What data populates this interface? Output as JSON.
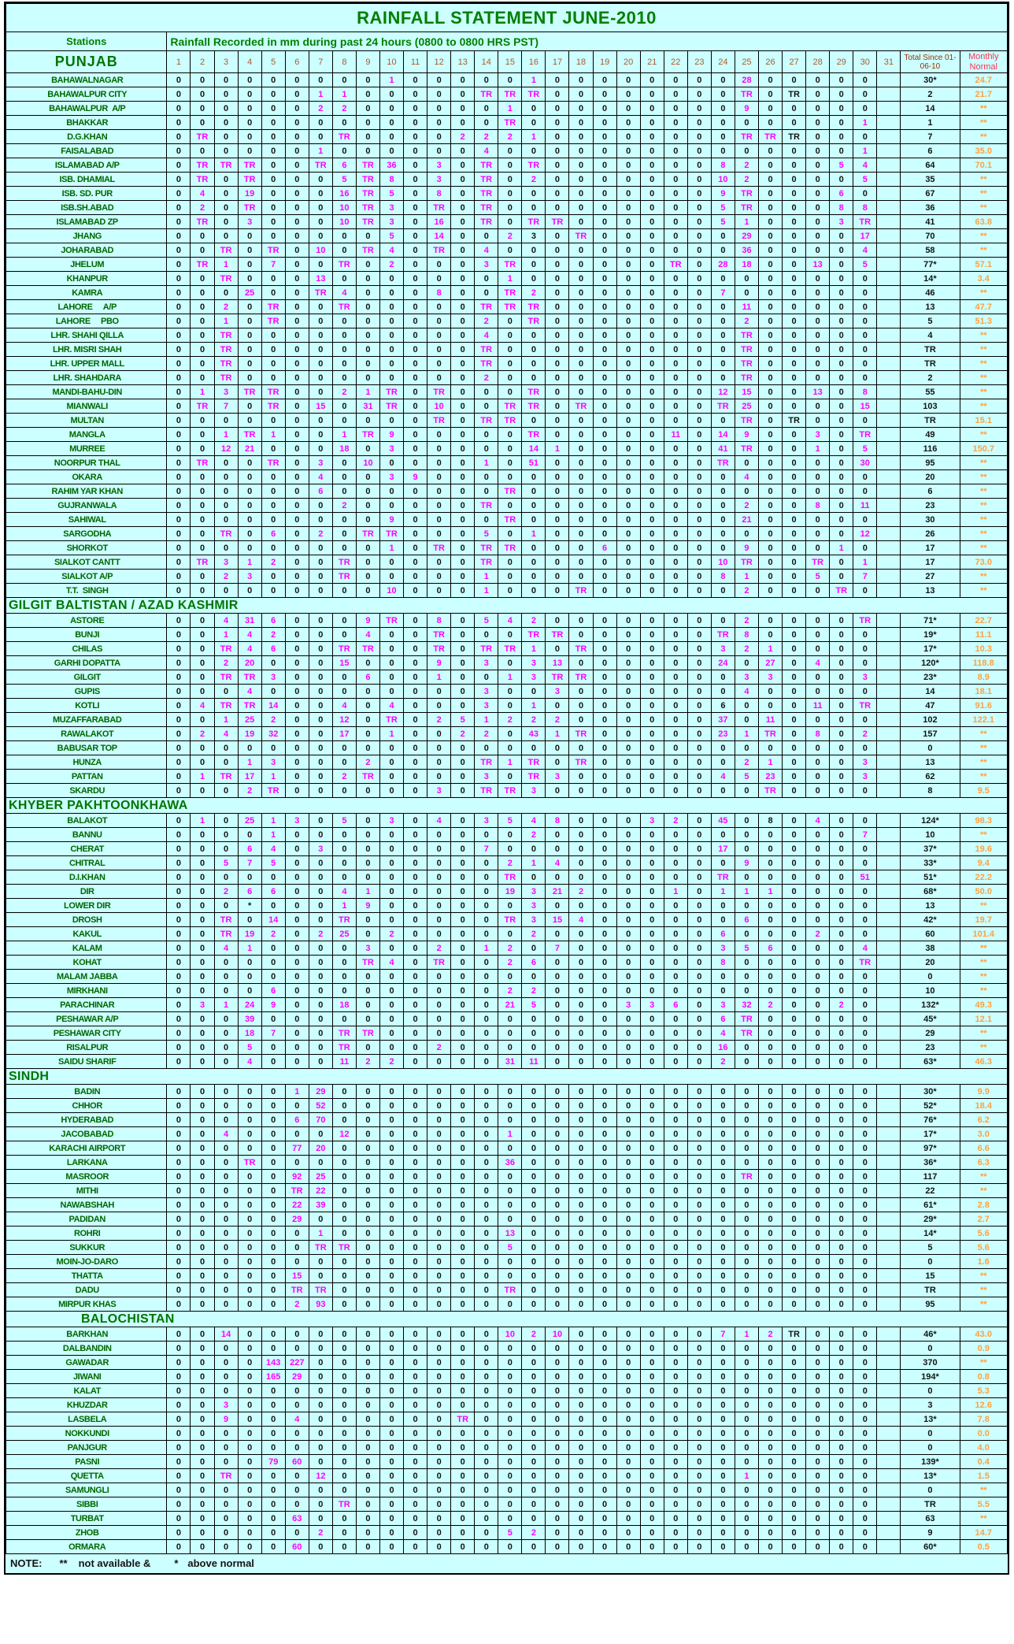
{
  "title": "RAINFALL STATEMENT JUNE-2010",
  "header": {
    "stations_label": "Stations",
    "subtitle": "Rainfall Recorded in mm during past 24 hours (0800 to 0800 HRS PST)",
    "day_numbers": [
      "1",
      "2",
      "3",
      "4",
      "5",
      "6",
      "7",
      "8",
      "9",
      "10",
      "11",
      "12",
      "13",
      "14",
      "15",
      "16",
      "17",
      "18",
      "19",
      "20",
      "21",
      "22",
      "23",
      "24",
      "25",
      "26",
      "27",
      "28",
      "29",
      "30",
      "31"
    ],
    "total_label": "Total Since 01-06-10",
    "normal_label": "Monthly Normal"
  },
  "note": {
    "label": "NOTE:",
    "na_symbol": "**",
    "na_text": "not available &",
    "an_symbol": "*",
    "an_text": "above normal"
  },
  "colors": {
    "background": "#CCFFFF",
    "title_green": "#008000",
    "station_green": "#006600",
    "value_magenta": "#FF00FF",
    "zero_black": "#141414",
    "day_header_brown": "#B05A28",
    "total_header_brown": "#993300",
    "normal_header_red": "#FF3355",
    "normal_value_orange": "#FFA040"
  },
  "sections": [
    {
      "name": "PUNJAB",
      "rows": [
        [
          "BAHAWALNAGAR",
          "0 0 0 0 0 0 0 0 0 1 0 0 0 0 0 1 0 0 0 0 0 0 0 0 28 0 0 0 0 0",
          "30*",
          "24.7"
        ],
        [
          "BAHAWALPUR CITY",
          "0 0 0 0 0 0 1 1 0 0 0 0 0 TR TR TR 0 0 0 0 0 0 0 0 TR 0 !TR 0 0 0",
          "2",
          "21.7"
        ],
        [
          "BAHAWALPUR  A/P",
          "0 0 0 0 0 0 2 2 0 0 0 0 0 0 1 0 0 0 0 0 0 0 0 0 9 0 0 0 0 0",
          "14",
          "**"
        ],
        [
          "BHAKKAR",
          "0 0 0 0 0 0 0 0 0 0 0 0 0 0 TR 0 0 0 0 0 0 0 0 0 0 0 0 0 0 1",
          "1",
          "**"
        ],
        [
          "D.G.KHAN",
          "0 TR 0 0 0 0 0 TR 0 0 0 0 2 2 2 1 0 0 0 0 0 0 0 0 TR TR !TR 0 0 0",
          "7",
          "**"
        ],
        [
          "FAISALABAD",
          "0 0 0 0 0 0 1 0 0 0 0 0 0 4 0 0 0 0 0 0 0 0 0 0 0 0 0 0 0 1",
          "6",
          "35.0"
        ],
        [
          "ISLAMABAD A/P",
          "0 TR TR TR 0 0 TR 6 TR 36 0 3 0 TR 0 TR 0 0 0 0 0 0 0 8 2 0 0 0 5 4",
          "64",
          "70.1"
        ],
        [
          "ISB. DHAMIAL",
          "0 TR 0 TR 0 0 0 5 TR 8 0 3 0 TR 0 2 0 0 0 0 0 0 0 10 2 0 0 0 0 5",
          "35",
          "**"
        ],
        [
          "ISB. SD. PUR",
          "0 4 0 19 0 0 0 16 TR 5 0 8 0 TR 0 0 0 0 0 0 0 0 0 9 TR 0 0 0 6 0",
          "67",
          "**"
        ],
        [
          "ISB.SH.ABAD",
          "0 2 0 TR 0 0 0 10 TR 3 0 TR 0 TR 0 0 0 0 0 0 0 0 0 5 TR 0 0 0 8 8",
          "36",
          "**"
        ],
        [
          "ISLAMABAD ZP",
          "0 TR 0 3 0 0 0 10 TR 3 0 16 0 TR 0 TR TR 0 0 0 0 0 0 5 1 0 0 0 3 TR",
          "41",
          "63.8"
        ],
        [
          "JHANG",
          "0 0 0 0 0 0 0 0 0 5 0 14 0 0 2 !3 0 TR 0 0 0 0 0 0 29 0 0 0 0 17",
          "70",
          "**"
        ],
        [
          "JOHARABAD",
          "0 0 TR 0 TR 0 10 0 TR 4 0 TR 0 4 0 0 0 0 0 0 0 0 0 0 36 0 0 0 0 4",
          "58",
          "**"
        ],
        [
          "JHELUM",
          "0 TR 1 0 7 0 0 TR 0 2 0 0 0 3 TR 0 0 0 0 0 0 TR 0 28 18 0 0 13 0 5",
          "77*",
          "57.1"
        ],
        [
          "KHANPUR",
          "0 0 TR 0 0 0 13 0 0 0 0 0 0 0 1 0 0 0 0 0 0 0 0 0 0 0 0 0 0 0",
          "14*",
          "3.4"
        ],
        [
          "KAMRA",
          "0 0 0 25 0 0 TR 4 0 0 0 8 0 0 TR 2 0 0 0 0 0 0 0 7 0 0 0 0 0 0",
          "46",
          "**"
        ],
        [
          "LAHORE     A/P",
          "0 0 2 0 TR 0 0 TR 0 0 0 0 0 TR TR TR 0 0 0 0 0 0 0 0 11 0 0 0 0 0",
          "13",
          "47.7"
        ],
        [
          "LAHORE     PBO",
          "0 0 1 0 TR 0 0 0 0 0 0 0 0 2 0 TR 0 0 0 0 0 0 0 0 2 0 0 0 0 0",
          "5",
          "51.3"
        ],
        [
          "LHR. SHAHI QILLA",
          "0 0 TR 0 0 0 0 0 0 0 0 0 0 4 0 0 0 0 0 0 0 0 0 0 TR 0 0 0 0 0",
          "4",
          "**"
        ],
        [
          "LHR. MISRI SHAH",
          "0 0 TR 0 0 0 0 0 0 0 0 0 0 TR 0 0 0 0 0 0 0 0 0 0 TR 0 0 0 0 0",
          "TR",
          "**"
        ],
        [
          "LHR. UPPER MALL",
          "0 0 TR 0 0 0 0 0 0 0 0 0 0 TR 0 0 0 0 0 0 0 0 0 0 TR 0 0 0 0 0",
          "TR",
          "**"
        ],
        [
          "LHR. SHAHDARA",
          "0 0 TR 0 0 0 0 0 0 0 0 0 0 2 0 0 0 0 0 0 0 0 0 0 TR 0 0 0 0 0",
          "2",
          "**"
        ],
        [
          "MANDI-BAHU-DIN",
          "0 1 3 TR TR 0 0 2 1 TR 0 TR 0 0 0 TR 0 0 0 0 0 0 0 12 15 0 0 13 0 8",
          "55",
          "**"
        ],
        [
          "MIANWALI",
          "0 TR 7 0 TR 0 15 0 31 TR 0 10 0 0 TR TR 0 TR 0 0 0 0 0 TR 25 0 0 0 0 15",
          "103",
          "**"
        ],
        [
          "MULTAN",
          "0 0 0 0 0 0 0 0 0 0 0 TR 0 TR TR 0 0 0 0 0 0 0 0 0 TR 0 !TR 0 0 0",
          "TR",
          "15.1"
        ],
        [
          "MANGLA",
          "0 0 1 TR 1 0 0 1 TR 9 0 0 0 0 0 TR 0 0 0 0 0 11 0 14 9 0 0 3 0 TR",
          "49",
          "**"
        ],
        [
          "MURREE",
          "0 0 12 21 0 0 0 18 0 3 0 0 0 0 0 14 1 0 0 0 0 0 0 41 TR 0 0 1 0 5",
          "116",
          "150.7"
        ],
        [
          "NOORPUR THAL",
          "0 TR 0 0 TR 0 3 0 10 0 0 0 0 1 0 51 0 0 0 0 0 0 0 TR 0 0 0 0 0 30",
          "95",
          "**"
        ],
        [
          "OKARA",
          "0 0 0 0 0 0 4 0 0 3 9 0 0 0 0 0 0 0 0 0 0 0 0 0 4 0 0 0 0 0",
          "20",
          "**"
        ],
        [
          "RAHIM YAR KHAN",
          "0 0 0 0 0 0 6 0 0 0 0 0 0 0 TR 0 0 0 0 0 0 0 0 0 0 0 0 0 0 0",
          "6",
          "**"
        ],
        [
          "GUJRANWALA",
          "0 0 0 0 0 0 0 2 0 0 0 0 0 TR 0 0 0 0 0 0 0 0 0 0 2 0 0 8 0 11",
          "23",
          "**"
        ],
        [
          "SAHIWAL",
          "0 0 0 0 0 0 0 0 0 9 0 0 0 0 TR 0 0 0 0 0 0 0 0 0 21 0 0 0 0 0",
          "30",
          "**"
        ],
        [
          "SARGODHA",
          "0 0 TR 0 6 0 2 0 TR TR 0 0 0 5 0 1 0 0 0 0 0 0 0 0 0 0 0 0 0 12",
          "26",
          "**"
        ],
        [
          "SHORKOT",
          "0 0 0 0 0 0 0 0 0 1 0 TR 0 TR TR 0 0 0 6 0 0 0 0 0 9 0 0 0 1 0",
          "17",
          "**"
        ],
        [
          "SIALKOT CANTT",
          "0 TR 3 1 2 0 0 TR 0 0 0 0 0 TR 0 0 0 0 0 0 0 0 0 10 TR 0 0 TR 0 1",
          "17",
          "73.0"
        ],
        [
          "SIALKOT A/P",
          "0 0 2 3 0 0 0 TR 0 0 0 0 0 1 0 0 0 0 0 0 0 0 0 8 1 0 0 5 0 7",
          "27",
          "**"
        ],
        [
          "T.T.  SINGH",
          "0 0 0 0 0 0 0 0 0 10 0 0 0 1 0 0 0 TR 0 0 0 0 0 0 2 0 0 0 TR 0",
          "13",
          "**"
        ]
      ]
    },
    {
      "name": "GILGIT BALTISTAN / AZAD KASHMIR",
      "rows": [
        [
          "ASTORE",
          "0 0 4 31 6 0 0 0 9 TR 0 8 0 5 4 2 0 0 0 0 0 0 0 0 2 0 0 0 0 TR",
          "71*",
          "22.7"
        ],
        [
          "BUNJI",
          "0 0 1 4 2 0 0 0 4 0 0 TR 0 0 0 TR TR 0 0 0 0 0 0 TR 8 0 0 0 0 0",
          "19*",
          "11.1"
        ],
        [
          "CHILAS",
          "0 0 TR 4 6 0 0 TR TR 0 0 TR 0 TR TR 1 0 TR 0 0 0 0 0 3 2 1 0 0 0 0",
          "17*",
          "10.3"
        ],
        [
          "GARHI DOPATTA",
          "0 0 2 20 0 0 0 15 0 0 0 9 0 3 0 3 13 0 0 0 0 0 0 24 0 27 0 4 0 0",
          "120*",
          "118.8"
        ],
        [
          "GILGIT",
          "0 0 TR TR 3 0 0 0 6 0 0 1 0 0 1 3 TR TR 0 0 0 0 0 0 3 3 0 0 0 3",
          "23*",
          "8.9"
        ],
        [
          "GUPIS",
          "0 0 0 4 0 0 0 0 0 0 0 0 0 3 0 0 3 0 0 0 0 0 0 0 4 0 0 0 0 0",
          "14",
          "18.1"
        ],
        [
          "KOTLI",
          "0 4 TR TR 14 0 0 4 0 4 0 0 0 3 0 1 0 0 0 0 0 0 0 !6 0 0 0 11 0 TR",
          "47",
          "91.6"
        ],
        [
          "MUZAFFARABAD",
          "0 0 1 25 2 0 0 12 0 TR 0 2 5 1 2 2 2 0 0 0 0 0 0 37 0 11 0 0 0 0",
          "102",
          "122.1"
        ],
        [
          "RAWALAKOT",
          "0 2 4 19 32 0 0 17 0 1 0 0 2 2 0 43 1 TR 0 0 0 0 0 23 1 TR 0 8 0 2",
          "157",
          "**"
        ],
        [
          "BABUSAR TOP",
          "0 0 0 0 0 0 0 0 0 0 0 0 0 0 0 0 0 0 0 0 0 0 0 0 0 0 0 0 0 0",
          "0",
          "**"
        ],
        [
          "HUNZA",
          "0 0 0 1 3 0 0 0 2 0 0 0 0 TR 1 TR 0 TR 0 0 0 0 0 0 2 1 0 0 0 3",
          "13",
          "**"
        ],
        [
          "PATTAN",
          "0 1 TR 17 1 0 0 2 TR 0 0 0 0 3 0 TR 3 0 0 0 0 0 0 4 5 23 0 0 0 3",
          "62",
          "**"
        ],
        [
          "SKARDU",
          "0 0 0 2 TR 0 0 0 0 0 0 3 0 TR TR 3 0 0 0 0 0 0 0 0 0 TR 0 0 0 0",
          "8",
          "9.5"
        ]
      ]
    },
    {
      "name": "KHYBER PAKHTOONKHAWA",
      "rows": [
        [
          "BALAKOT",
          "0 1 0 25 1 3 0 5 0 3 0 4 0 3 5 4 8 0 0 0 3 2 0 45 0 !8 0 4 0 0",
          "124*",
          "98.3"
        ],
        [
          "BANNU",
          "0 0 0 0 1 0 0 0 0 0 0 0 0 0 0 2 0 0 0 0 0 0 0 0 0 0 0 0 0 7",
          "10",
          "**"
        ],
        [
          "CHERAT",
          "0 0 0 6 4 0 3 0 0 0 0 0 0 7 0 0 0 0 0 0 0 0 0 17 0 0 0 0 0 0",
          "37*",
          "19.6"
        ],
        [
          "CHITRAL",
          "0 0 5 7 5 0 0 0 0 0 0 0 0 0 2 1 4 0 0 0 0 0 0 0 9 0 0 0 0 0",
          "33*",
          "9.4"
        ],
        [
          "D.I.KHAN",
          "0 0 0 0 0 0 0 0 0 0 0 0 0 0 TR 0 0 0 0 0 0 0 0 TR 0 0 0 0 0 51",
          "51*",
          "22.2"
        ],
        [
          "DIR",
          "0 0 2 6 6 0 0 4 1 0 0 0 0 0 19 3 21 2 0 0 0 1 0 1 1 1 0 0 0 0",
          "68*",
          "50.0"
        ],
        [
          "LOWER DIR",
          "0 0 0 * 0 0 0 1 9 0 0 0 0 0 0 3 0 0 0 0 0 0 0 0 0 0 0 0 0 0",
          "13",
          "**"
        ],
        [
          "DROSH",
          "0 0 TR 0 14 0 0 TR 0 0 0 0 0 0 TR 3 15 4 0 0 0 0 0 0 6 0 0 0 0 0",
          "42*",
          "19.7"
        ],
        [
          "KAKUL",
          "0 0 TR 19 2 0 2 25 0 2 0 0 0 0 0 2 0 0 0 0 0 0 0 6 0 0 0 2 0 0",
          "60",
          "101.4"
        ],
        [
          "KALAM",
          "0 0 4 1 0 0 0 0 3 0 0 2 0 1 2 0 7 0 0 0 0 0 0 3 5 6 0 0 0 4",
          "38",
          "**"
        ],
        [
          "KOHAT",
          "0 0 0 0 0 0 0 0 TR 4 0 TR 0 0 2 6 0 0 0 0 0 0 0 8 0 0 0 0 0 TR",
          "20",
          "**"
        ],
        [
          "MALAM JABBA",
          "0 0 0 0 0 0 0 0 0 0 0 0 0 0 0 0 0 0 0 0 0 0 0 0 0 0 0 0 0 0",
          "0",
          "**"
        ],
        [
          "MIRKHANI",
          "0 0 0 0 6 0 0 0 0 0 0 0 0 0 2 2 0 0 0 0 0 0 0 0 0 0 0 0 0 0",
          "10",
          "**"
        ],
        [
          "PARACHINAR",
          "0 3 1 24 9 0 0 18 0 0 0 0 0 0 21 5 0 0 0 3 3 6 0 3 32 2 0 0 2 0",
          "132*",
          "49.3"
        ],
        [
          "PESHAWAR A/P",
          "0 0 0 39 0 0 0 0 0 0 0 0 0 0 0 0 0 0 0 0 0 0 0 6 TR 0 0 0 0 0",
          "45*",
          "12.1"
        ],
        [
          "PESHAWAR CITY",
          "0 0 0 18 7 0 0 TR TR 0 0 0 0 0 0 0 0 0 0 0 0 0 0 4 TR 0 0 0 0 0",
          "29",
          "**"
        ],
        [
          "RISALPUR",
          "0 0 0 5 0 0 0 TR 0 0 0 2 0 0 0 0 0 0 0 0 0 0 0 16 0 0 0 0 0 0",
          "23",
          "**"
        ],
        [
          "SAIDU SHARIF",
          "0 0 0 4 0 0 0 11 2 2 0 0 0 0 31 11 0 0 0 0 0 0 0 2 0 0 0 0 0 0",
          "63*",
          "46.3"
        ]
      ]
    },
    {
      "name": "SINDH",
      "rows": [
        [
          "BADIN",
          "0 0 0 0 0 1 29 0 0 0 0 0 0 0 0 0 0 0 0 0 0 0 0 0 0 0 0 0 0 0",
          "30*",
          "9.9"
        ],
        [
          "CHHOR",
          "0 0 0 0 0 0 52 0 0 0 0 0 0 0 0 0 0 0 0 0 0 0 0 0 0 0 0 0 0 0",
          "52*",
          "18.4"
        ],
        [
          "HYDERABAD",
          "0 0 0 0 0 6 70 0 0 0 0 0 0 0 0 0 0 0 0 0 0 0 0 0 0 0 0 0 0 0",
          "76*",
          "6.2"
        ],
        [
          "JACOBABAD",
          "0 0 4 0 0 0 0 12 0 0 0 0 0 0 1 0 0 0 0 0 0 0 0 0 0 0 0 0 0 0",
          "17*",
          "3.0"
        ],
        [
          "KARACHI AIRPORT",
          "0 0 0 0 0 77 20 0 0 0 0 0 0 0 0 0 0 0 0 0 0 0 0 0 0 0 0 0 0 0",
          "97*",
          "6.6"
        ],
        [
          "LARKANA",
          "0 0 0 TR 0 0 0 0 0 0 0 0 0 0 36 0 0 0 0 0 0 0 0 0 0 0 0 0 0 0",
          "36*",
          "6.3"
        ],
        [
          "MASROOR",
          "0 0 0 0 0 92 25 0 0 0 0 0 0 0 0 0 0 0 0 0 0 0 0 0 TR 0 0 0 0 0",
          "117",
          "**"
        ],
        [
          "MITHI",
          "0 0 0 0 0 TR 22 0 0 0 0 0 0 0 0 0 0 0 0 0 0 0 0 0 0 0 0 0 0 0",
          "22",
          "**"
        ],
        [
          "NAWABSHAH",
          "0 0 0 0 0 22 39 0 0 0 0 0 0 0 0 0 0 0 0 0 0 0 0 0 0 0 0 0 0 0",
          "61*",
          "2.8"
        ],
        [
          "PADIDAN",
          "0 0 0 0 0 29 0 0 0 0 0 0 0 0 0 0 0 0 0 0 0 0 0 0 0 0 0 0 0 0",
          "29*",
          "2.7"
        ],
        [
          "ROHRI",
          "0 0 0 0 0 0 1 0 0 0 0 0 0 0 13 0 0 0 0 0 0 0 0 0 0 0 0 0 0 0",
          "14*",
          "5.6"
        ],
        [
          "SUKKUR",
          "0 0 0 0 0 0 TR TR 0 0 0 0 0 0 5 0 0 0 0 0 0 0 0 0 0 0 0 0 0 0",
          "5",
          "5.6"
        ],
        [
          "MOIN-JO-DARO",
          "0 0 0 0 0 0 0 0 0 0 0 0 0 0 0 0 0 0 0 0 0 0 0 0 0 0 0 0 0 0",
          "0",
          "1.6"
        ],
        [
          "THATTA",
          "0 0 0 0 0 15 0 0 0 0 0 0 0 0 0 0 0 0 0 0 0 0 0 0 0 0 0 0 0 0",
          "15",
          "**"
        ],
        [
          "DADU",
          "0 0 0 0 0 TR TR 0 0 0 0 0 0 0 TR 0 0 0 0 0 0 0 0 0 0 0 0 0 0 0",
          "TR",
          "**"
        ],
        [
          "MIRPUR KHAS",
          "0 0 0 0 0 2 93 0 0 0 0 0 0 0 0 0 0 0 0 0 0 0 0 0 0 0 0 0 0 0",
          "95",
          "**"
        ]
      ]
    },
    {
      "name": "BALOCHISTAN",
      "indented": true,
      "rows": [
        [
          "BARKHAN",
          "0 0 14 0 0 0 0 0 0 0 0 0 0 0 10 2 10 0 0 0 0 0 0 7 1 2 !TR 0 0 0",
          "46*",
          "43.0"
        ],
        [
          "DALBANDIN",
          "0 0 0 0 0 0 0 0 0 0 0 0 0 0 0 0 0 0 0 0 0 0 0 0 0 0 0 0 0 0",
          "0",
          "0.9"
        ],
        [
          "GAWADAR",
          "0 0 0 0 143 227 0 0 0 0 0 0 0 0 0 0 0 0 0 0 0 0 0 0 0 0 0 0 0 0",
          "370",
          "**"
        ],
        [
          "JIWANI",
          "0 0 0 0 165 29 0 0 0 0 0 0 0 0 0 0 0 0 0 0 0 0 0 0 0 0 0 0 0 0",
          "194*",
          "0.8"
        ],
        [
          "KALAT",
          "0 0 0 0 0 0 0 0 0 0 0 0 0 0 0 0 0 0 0 0 0 0 0 0 0 0 0 0 0 0",
          "0",
          "5.3"
        ],
        [
          "KHUZDAR",
          "0 0 3 0 0 0 0 0 0 0 0 0 0 0 0 0 0 0 0 0 0 0 0 0 0 0 0 0 0 0",
          "3",
          "12.6"
        ],
        [
          "LASBELA",
          "0 0 9 0 0 4 0 0 0 0 0 0 TR 0 0 0 0 0 0 0 0 0 0 0 0 0 0 0 0 0",
          "13*",
          "7.8"
        ],
        [
          "NOKKUNDI",
          "0 0 0 0 0 0 0 0 0 0 0 0 0 0 0 0 0 0 0 0 0 0 0 0 0 0 0 0 0 0",
          "0",
          "0.0"
        ],
        [
          "PANJGUR",
          "0 0 0 0 0 0 0 0 0 0 0 0 0 0 0 0 0 0 0 0 0 0 0 0 0 0 0 0 0 0",
          "0",
          "4.0"
        ],
        [
          "PASNI",
          "0 0 0 0 79 60 0 0 0 0 0 0 0 0 0 0 0 0 0 0 0 0 0 0 0 0 0 0 0 0",
          "139*",
          "0.4"
        ],
        [
          "QUETTA",
          "0 0 TR 0 0 0 12 0 0 0 0 0 0 0 0 0 0 0 0 0 0 0 0 0 1 0 0 0 0 0",
          "13*",
          "1.5"
        ],
        [
          "SAMUNGLI",
          "0 0 0 0 0 0 0 0 0 0 0 0 0 0 0 0 0 0 0 0 0 0 0 0 0 0 0 0 0 0",
          "0",
          "**"
        ],
        [
          "SIBBI",
          "0 0 0 0 0 0 0 TR 0 0 0 0 0 0 0 0 0 0 0 0 0 0 0 0 0 0 0 0 0 0",
          "TR",
          "5.5"
        ],
        [
          "TURBAT",
          "0 0 0 0 0 63 0 0 0 0 0 0 0 0 0 0 0 0 0 0 0 0 0 0 0 0 0 0 0 0",
          "63",
          "**"
        ],
        [
          "ZHOB",
          "0 0 0 0 0 0 2 0 0 0 0 0 0 0 5 2 0 0 0 0 0 0 0 0 0 0 0 0 0 0",
          "9",
          "14.7"
        ],
        [
          "ORMARA",
          "0 0 0 0 0 60 0 0 0 0 0 0 0 0 0 0 0 0 0 0 0 0 0 0 0 0 0 0 0 0",
          "60*",
          "0.5"
        ]
      ]
    }
  ]
}
